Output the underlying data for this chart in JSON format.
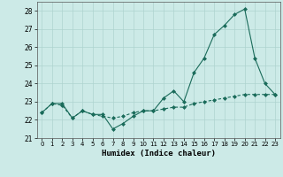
{
  "xlabel": "Humidex (Indice chaleur)",
  "x": [
    0,
    1,
    2,
    3,
    4,
    5,
    6,
    7,
    8,
    9,
    10,
    11,
    12,
    13,
    14,
    15,
    16,
    17,
    18,
    19,
    20,
    21,
    22,
    23
  ],
  "y_main": [
    22.4,
    22.9,
    22.9,
    22.1,
    22.5,
    22.3,
    22.3,
    21.5,
    21.8,
    22.2,
    22.5,
    22.5,
    23.2,
    23.6,
    23.0,
    24.6,
    25.4,
    26.7,
    27.2,
    27.8,
    28.1,
    25.4,
    24.0,
    23.4
  ],
  "y_avg": [
    22.4,
    22.9,
    22.8,
    22.1,
    22.5,
    22.3,
    22.2,
    22.1,
    22.2,
    22.4,
    22.5,
    22.5,
    22.6,
    22.7,
    22.7,
    22.9,
    23.0,
    23.1,
    23.2,
    23.3,
    23.4,
    23.4,
    23.4,
    23.4
  ],
  "ylim": [
    21.0,
    28.5
  ],
  "xlim": [
    -0.5,
    23.5
  ],
  "yticks": [
    21,
    22,
    23,
    24,
    25,
    26,
    27,
    28
  ],
  "xticks": [
    0,
    1,
    2,
    3,
    4,
    5,
    6,
    7,
    8,
    9,
    10,
    11,
    12,
    13,
    14,
    15,
    16,
    17,
    18,
    19,
    20,
    21,
    22,
    23
  ],
  "line_color": "#1a6b5a",
  "bg_color": "#cceae7",
  "grid_color": "#aed4d0",
  "marker": "D",
  "marker_size": 2.0,
  "line_width": 0.8
}
